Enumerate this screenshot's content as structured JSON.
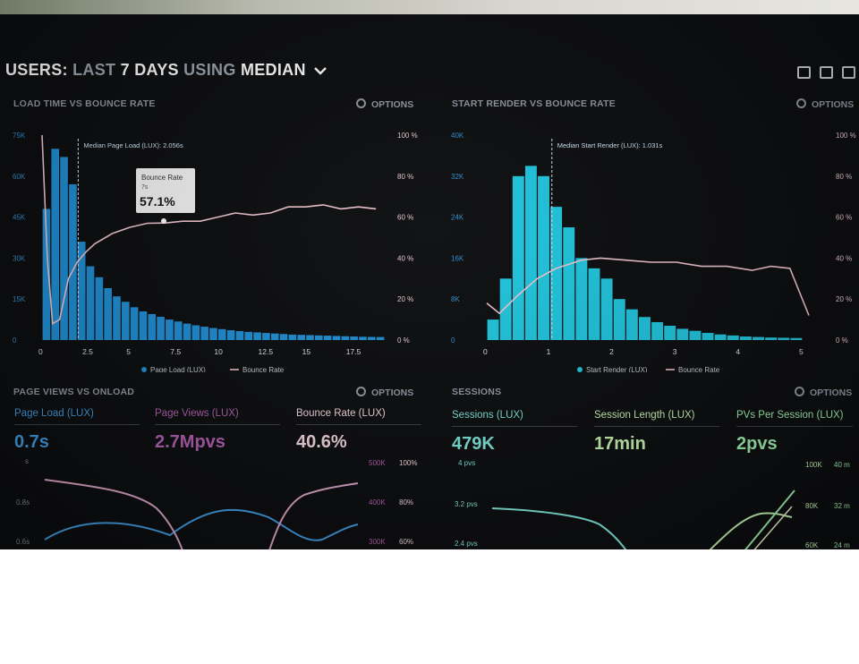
{
  "header": {
    "prefix": "USERS:",
    "last": "LAST",
    "days": "7 DAYS",
    "using": "USING",
    "median": "MEDIAN"
  },
  "options_label": "OPTIONS",
  "panels": {
    "load_time": {
      "title": "LOAD TIME VS BOUNCE RATE",
      "median_label": "Median Page Load (LUX): 2.056s",
      "tooltip": {
        "title": "Bounce Rate",
        "sub": "7s",
        "value": "57.1%"
      },
      "y_left": [
        "75K",
        "60K",
        "45K",
        "30K",
        "15K",
        "0"
      ],
      "y_right": [
        "100 %",
        "80 %",
        "60 %",
        "40 %",
        "20 %",
        "0 %"
      ],
      "x_ticks": [
        "0",
        "2.5",
        "5",
        "7.5",
        "10",
        "12.5",
        "15",
        "17.5"
      ],
      "legend": {
        "series1": "Page Load (LUX)",
        "series2": "Bounce Rate"
      }
    },
    "start_render": {
      "title": "START RENDER VS BOUNCE RATE",
      "median_label": "Median Start Render (LUX): 1.031s",
      "y_left": [
        "40K",
        "32K",
        "24K",
        "16K",
        "8K",
        "0"
      ],
      "y_right": [
        "100 %",
        "80 %",
        "60 %",
        "40 %",
        "20 %",
        "0 %"
      ],
      "x_ticks": [
        "0",
        "1",
        "2",
        "3",
        "4",
        "5"
      ],
      "legend": {
        "series1": "Start Render (LUX)",
        "series2": "Bounce Rate"
      }
    },
    "page_views": {
      "title": "PAGE VIEWS VS ONLOAD",
      "metrics": [
        {
          "label": "Page Load (LUX)",
          "value": "0.7s"
        },
        {
          "label": "Page Views (LUX)",
          "value": "2.7Mpvs"
        },
        {
          "label": "Bounce Rate (LUX)",
          "value": "40.6%"
        }
      ],
      "y_left": [
        "s",
        "0.8s",
        "0.6s"
      ],
      "y_mid": [
        "500K",
        "400K",
        "300K"
      ],
      "y_right": [
        "100%",
        "80%",
        "60%"
      ]
    },
    "sessions": {
      "title": "SESSIONS",
      "metrics": [
        {
          "label": "Sessions (LUX)",
          "value": "479K"
        },
        {
          "label": "Session Length (LUX)",
          "value": "17min"
        },
        {
          "label": "PVs Per Session (LUX)",
          "value": "2pvs"
        }
      ],
      "y_left": [
        "4 pvs",
        "3.2 pvs",
        "2.4 pvs"
      ],
      "y_mid": [
        "100K",
        "80K",
        "60K"
      ],
      "y_right": [
        "40 m",
        "32 m",
        "24 m"
      ]
    }
  },
  "chart_data": [
    {
      "type": "bar",
      "x_unit": "s",
      "bin_width": 0.5,
      "x_start": 0,
      "values": [
        48,
        70,
        67,
        57,
        36,
        27,
        23,
        19,
        16,
        14,
        12,
        10.5,
        9.5,
        8.5,
        7.5,
        6.8,
        6,
        5.4,
        4.9,
        4.4,
        4,
        3.6,
        3.3,
        3,
        2.8,
        2.6,
        2.4,
        2.2,
        2,
        1.9,
        1.8,
        1.7,
        1.6,
        1.5,
        1.4,
        1.3,
        1.2,
        1.15,
        1.1
      ],
      "ylim": [
        0,
        75
      ],
      "ylabel": "",
      "line": {
        "x": [
          0,
          0.3,
          0.6,
          1,
          1.5,
          2,
          2.5,
          3,
          4,
          5,
          6,
          7,
          8,
          9,
          10,
          11,
          12,
          13,
          14,
          15,
          16,
          17,
          18,
          19
        ],
        "y": [
          100,
          40,
          8,
          10,
          30,
          38,
          43,
          47,
          52,
          55,
          57,
          57.1,
          58,
          58,
          60,
          62,
          61,
          62,
          65,
          65,
          66,
          64,
          65,
          64
        ],
        "ylim": [
          0,
          100
        ]
      },
      "median": 2.056
    },
    {
      "type": "bar",
      "x_unit": "s",
      "bin_width": 0.2,
      "x_start": 0,
      "values": [
        4,
        12,
        32,
        34,
        32,
        26,
        22,
        16,
        14,
        12,
        8,
        6,
        4.5,
        3.5,
        2.8,
        2.2,
        1.8,
        1.4,
        1.1,
        0.9,
        0.7,
        0.6,
        0.5,
        0.45,
        0.4,
        0.3
      ],
      "ylim": [
        0,
        40
      ],
      "ylabel": "",
      "line": {
        "x": [
          0,
          0.2,
          0.5,
          0.8,
          1.1,
          1.5,
          1.8,
          2.2,
          2.6,
          3,
          3.4,
          3.8,
          4.2,
          4.5,
          4.8,
          5.1
        ],
        "y": [
          18,
          13,
          22,
          30,
          35,
          39,
          40,
          39,
          38,
          38,
          36,
          36,
          34,
          36,
          35,
          12
        ],
        "ylim": [
          0,
          100
        ]
      },
      "median": 1.031
    }
  ],
  "colors": {
    "blue": "#1e8fd6",
    "cyan": "#1fc7e0",
    "pink": "#f0c6cf",
    "page_views": "#b15fb0",
    "bounce": "#f3d6e0",
    "sessions_teal": "#7ee6d8",
    "session_length": "#c8f5b2",
    "pvs": "#9ff0b0"
  }
}
